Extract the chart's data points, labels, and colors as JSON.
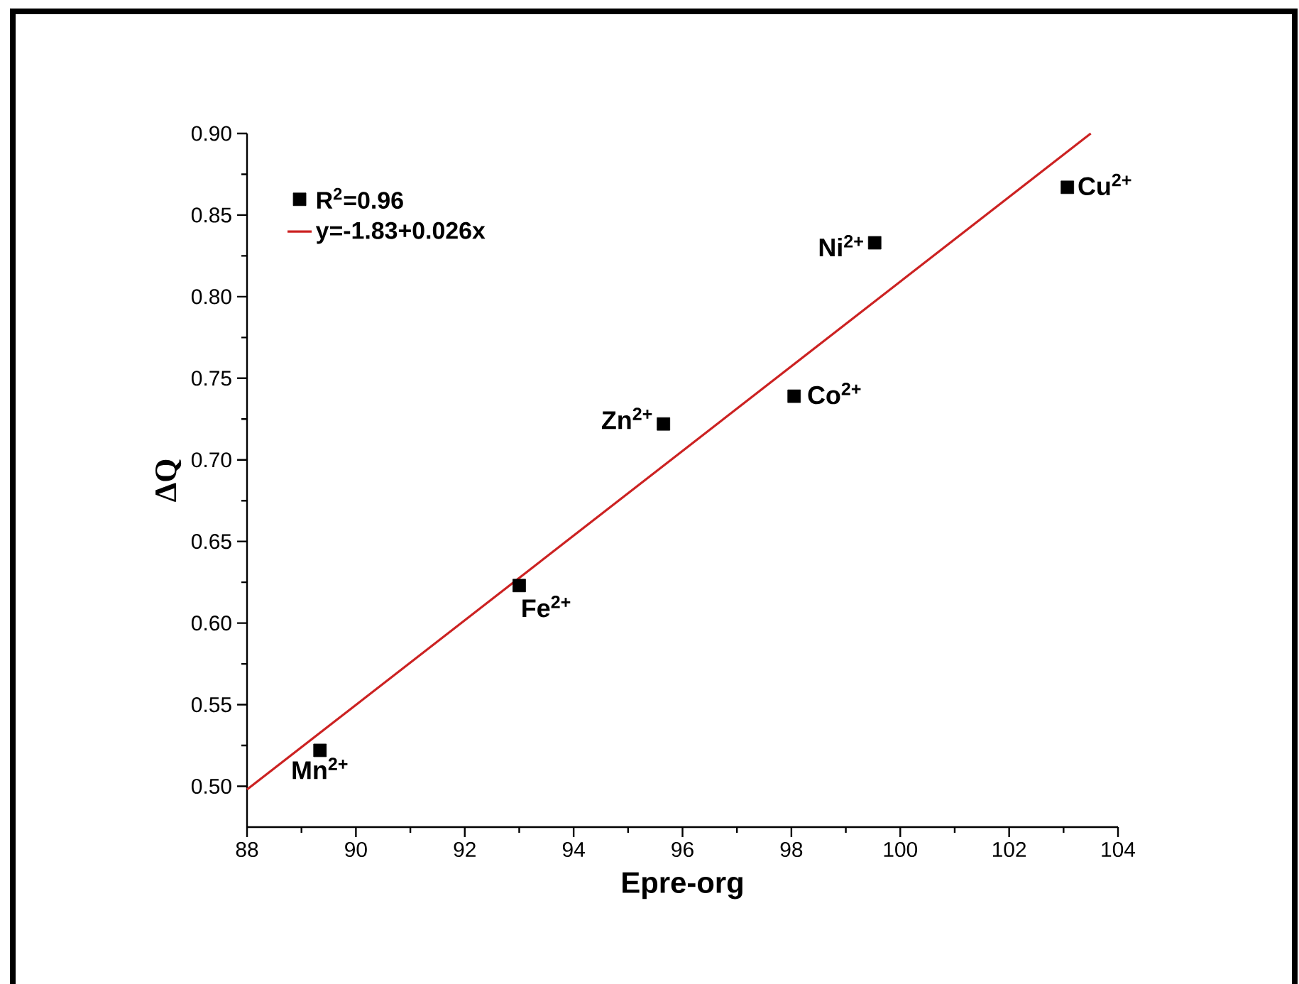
{
  "chart_data": {
    "type": "scatter",
    "xlabel": "Epre-org",
    "ylabel": "ΔQ",
    "xlim": [
      88,
      104
    ],
    "ylim": [
      0.475,
      0.9
    ],
    "xticks": [
      88,
      90,
      92,
      94,
      96,
      98,
      100,
      102,
      104
    ],
    "yticks": [
      {
        "value": 0.5,
        "label": "0.50"
      },
      {
        "value": 0.55,
        "label": "0.55"
      },
      {
        "value": 0.6,
        "label": "0.60"
      },
      {
        "value": 0.65,
        "label": "0.65"
      },
      {
        "value": 0.7,
        "label": "0.70"
      },
      {
        "value": 0.75,
        "label": "0.75"
      },
      {
        "value": 0.8,
        "label": "0.80"
      },
      {
        "value": 0.85,
        "label": "0.85"
      },
      {
        "value": 0.9,
        "label": "0.90"
      }
    ],
    "series": [
      {
        "name": "R$^{2}$=0.96",
        "marker": "square",
        "color": "#000000",
        "x": [
          89.34,
          93.0,
          95.65,
          98.05,
          99.53,
          103.07
        ],
        "values": [
          0.522,
          0.623,
          0.722,
          0.739,
          0.833,
          0.867
        ]
      },
      {
        "name": "y=-1.83+0.026x",
        "type": "line",
        "marker": "none",
        "color": "#cc2222",
        "x": [
          88,
          103.5
        ],
        "values": [
          0.498,
          0.9
        ]
      }
    ],
    "annotations": [
      {
        "text": "Mn$^{2+}$",
        "x": 89.34,
        "y": 0.522
      },
      {
        "text": "Fe$^{2+}$",
        "x": 93.0,
        "y": 0.623
      },
      {
        "text": "Zn$^{2+}$",
        "x": 95.65,
        "y": 0.722
      },
      {
        "text": "Co$^{2+}$",
        "x": 98.05,
        "y": 0.739
      },
      {
        "text": "Ni$^{2+}$",
        "x": 99.53,
        "y": 0.833
      },
      {
        "text": "Cu$^{2+}$",
        "x": 103.07,
        "y": 0.867
      }
    ],
    "legend": "top left",
    "grid": false
  }
}
